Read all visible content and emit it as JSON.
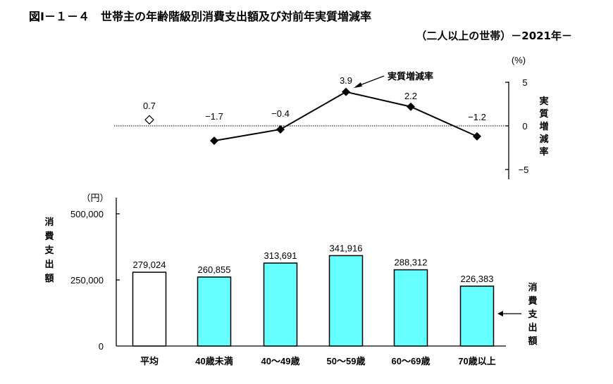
{
  "header": {
    "title": "図Ⅰ－１－４　世帯主の年齢階級別消費支出額及び対前年実質増減率",
    "subtitle": "（二人以上の世帯）－2021年－"
  },
  "colors": {
    "bar_fill": "#66FFFF",
    "average_bar_fill": "#FFFFFF",
    "line": "#000000",
    "axis": "#000000"
  },
  "chart_data": [
    {
      "type": "line",
      "title": "実質増減率",
      "ylabel": "実質増減率",
      "unit_label": "(%)",
      "ylim": [
        -5,
        5
      ],
      "yticks": [
        "5",
        "0",
        "−5"
      ],
      "categories": [
        "平均",
        "40歳未満",
        "40～49歳",
        "50～59歳",
        "60～69歳",
        "70歳以上"
      ],
      "series": [
        {
          "name": "平均",
          "marker": "open-diamond",
          "values": [
            0.7,
            null,
            null,
            null,
            null,
            null
          ]
        },
        {
          "name": "実質増減率",
          "marker": "filled-diamond",
          "values": [
            null,
            -1.7,
            -0.4,
            3.9,
            2.2,
            -1.2
          ]
        }
      ],
      "data_labels": [
        "0.7",
        "−1.7",
        "−0.4",
        "3.9",
        "2.2",
        "−1.2"
      ],
      "annotation": "実質増減率",
      "zero_line": "dotted"
    },
    {
      "type": "bar",
      "title": "消費支出額",
      "ylabel": "消費支出額",
      "unit_label": "（円）",
      "ylim": [
        0,
        500000
      ],
      "yticks": [
        "500,000",
        "250,000",
        "0"
      ],
      "categories": [
        "平均",
        "40歳未満",
        "40～49歳",
        "50～59歳",
        "60～69歳",
        "70歳以上"
      ],
      "values": [
        279024,
        260855,
        313691,
        341916,
        288312,
        226383
      ],
      "data_labels": [
        "279,024",
        "260,855",
        "313,691",
        "341,916",
        "288,312",
        "226,383"
      ],
      "annotation": "消費支出額"
    }
  ]
}
